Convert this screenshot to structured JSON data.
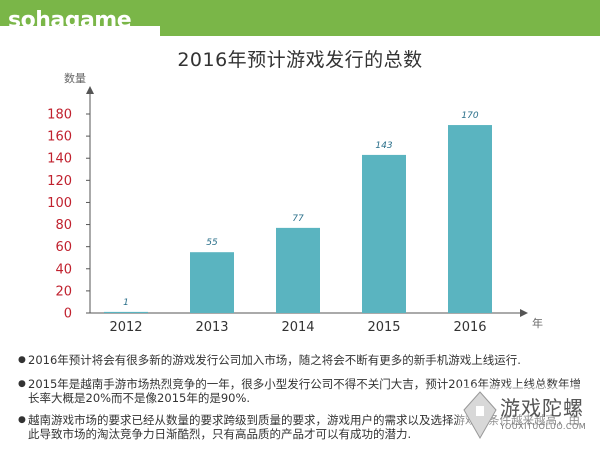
{
  "brand": {
    "logo_text": "sohagame"
  },
  "chart_data": {
    "type": "bar",
    "title": "2016年预计游戏发行的总数",
    "ylabel": "数量",
    "xlabel": "年",
    "categories": [
      "2012",
      "2013",
      "2014",
      "2015",
      "2016"
    ],
    "values": [
      1,
      55,
      77,
      143,
      170
    ],
    "yticks": [
      0,
      20,
      40,
      60,
      80,
      100,
      120,
      140,
      160,
      180
    ],
    "ylim": [
      0,
      190
    ],
    "grid": false,
    "bar_color": "#5ab4c0",
    "tick_label_color": "#c0212e"
  },
  "bullets": [
    "2016年预计将会有很多新的游戏发行公司加入市场，随之将会不断有更多的新手机游戏上线运行.",
    "2015年是越南手游市场热烈竞争的一年，很多小型发行公司不得不关门大吉，预计2016年游戏上线总数年增长率大概是20%而不是像2015年的是90%.",
    "越南游戏市场的要求已经从数量的要求跨级到质量的要求，游戏用户的需求以及选择游戏的条件越来越高，由此导致市场的淘汰竞争力日渐酷烈，只有高品质的产品才可以有成功的潜力."
  ],
  "watermark": {
    "name": "游戏陀螺",
    "url": "YOUXITUOLUO.COM"
  },
  "colors": {
    "header": "#7ab648",
    "bar": "#5ab4c0",
    "axis_labels": "#c0212e"
  }
}
